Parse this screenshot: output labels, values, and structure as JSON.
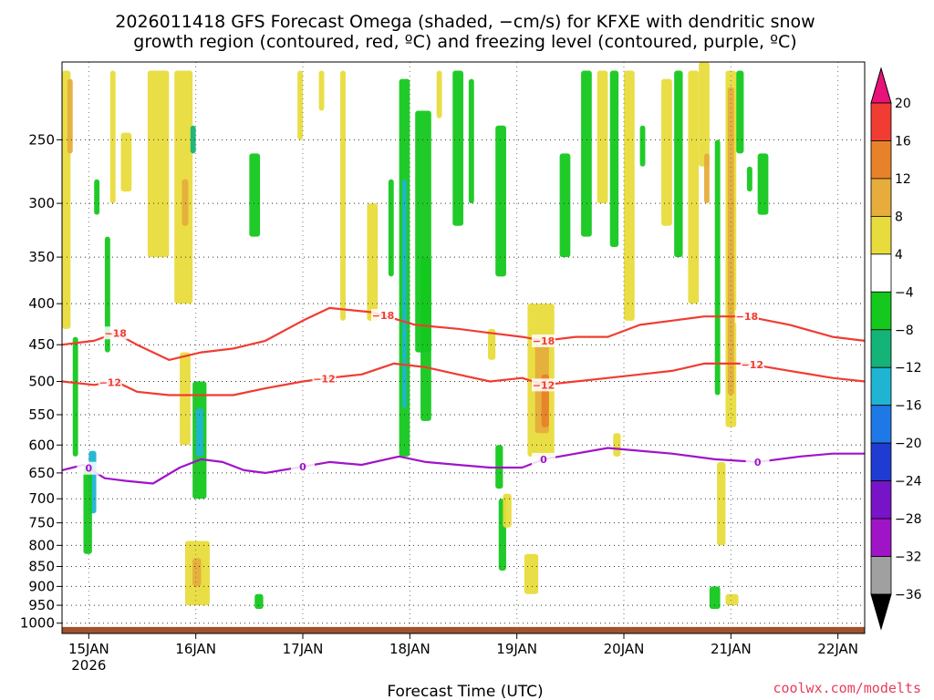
{
  "chart_data": {
    "type": "heatmap",
    "title": [
      "2026011418 GFS Forecast Omega (shaded, −cm/s) for KFXE with dendritic snow",
      "growth region (contoured, red, ºC) and freezing level (contoured, purple, ºC)"
    ],
    "xlabel": "Forecast Time (UTC)",
    "ylabel": "",
    "x_ticks": [
      {
        "t": 14.75,
        "label": "15JAN",
        "sub": "2026"
      },
      {
        "t": 15.75,
        "label": "16JAN",
        "sub": ""
      },
      {
        "t": 16.75,
        "label": "17JAN",
        "sub": ""
      },
      {
        "t": 17.75,
        "label": "18JAN",
        "sub": ""
      },
      {
        "t": 18.75,
        "label": "19JAN",
        "sub": ""
      },
      {
        "t": 19.75,
        "label": "20JAN",
        "sub": ""
      },
      {
        "t": 20.75,
        "label": "21JAN",
        "sub": ""
      },
      {
        "t": 21.75,
        "label": "22JAN",
        "sub": ""
      }
    ],
    "xlim": [
      14.5,
      22.0
    ],
    "y_ticks": [
      250,
      300,
      350,
      400,
      450,
      500,
      550,
      600,
      650,
      700,
      750,
      800,
      850,
      900,
      950,
      1000
    ],
    "ylim_hpa": [
      200,
      1030
    ],
    "colorbar": {
      "labels": [
        "20",
        "16",
        "12",
        "8",
        "4",
        "−4",
        "−8",
        "−12",
        "−16",
        "−20",
        "−24",
        "−28",
        "−32",
        "−36"
      ],
      "colors": [
        "#e8127a",
        "#f03c32",
        "#e8822a",
        "#e6ad3c",
        "#e8dc3c",
        "#ffffff",
        "#14c81e",
        "#14b478",
        "#1eb4d2",
        "#1e78e6",
        "#1e3cd2",
        "#7814c8",
        "#a014c8",
        "#a0a0a0",
        "#000000"
      ]
    },
    "shading_cells": [
      {
        "x": [
          14.5,
          14.58
        ],
        "p": [
          205,
          430
        ],
        "v": "4"
      },
      {
        "x": [
          14.55,
          14.6
        ],
        "p": [
          210,
          260
        ],
        "v": "8"
      },
      {
        "x": [
          14.6,
          14.65
        ],
        "p": [
          440,
          620
        ],
        "v": "-4"
      },
      {
        "x": [
          14.75,
          14.82
        ],
        "p": [
          610,
          730
        ],
        "v": "-12"
      },
      {
        "x": [
          14.7,
          14.78
        ],
        "p": [
          640,
          820
        ],
        "v": "-4"
      },
      {
        "x": [
          14.8,
          14.85
        ],
        "p": [
          280,
          310
        ],
        "v": "-4"
      },
      {
        "x": [
          14.9,
          14.95
        ],
        "p": [
          330,
          460
        ],
        "v": "-4"
      },
      {
        "x": [
          14.95,
          15.0
        ],
        "p": [
          205,
          300
        ],
        "v": "4"
      },
      {
        "x": [
          15.05,
          15.15
        ],
        "p": [
          245,
          290
        ],
        "v": "4"
      },
      {
        "x": [
          15.3,
          15.5
        ],
        "p": [
          205,
          350
        ],
        "v": "4"
      },
      {
        "x": [
          15.55,
          15.72
        ],
        "p": [
          205,
          400
        ],
        "v": "4"
      },
      {
        "x": [
          15.62,
          15.68
        ],
        "p": [
          280,
          320
        ],
        "v": "8"
      },
      {
        "x": [
          15.6,
          15.7
        ],
        "p": [
          460,
          600
        ],
        "v": "4"
      },
      {
        "x": [
          15.7,
          15.75
        ],
        "p": [
          240,
          260
        ],
        "v": "-8"
      },
      {
        "x": [
          15.72,
          15.85
        ],
        "p": [
          500,
          700
        ],
        "v": "-4"
      },
      {
        "x": [
          15.75,
          15.82
        ],
        "p": [
          540,
          620
        ],
        "v": "-12"
      },
      {
        "x": [
          15.65,
          15.88
        ],
        "p": [
          790,
          950
        ],
        "v": "4"
      },
      {
        "x": [
          15.72,
          15.8
        ],
        "p": [
          830,
          900
        ],
        "v": "8"
      },
      {
        "x": [
          16.25,
          16.35
        ],
        "p": [
          260,
          330
        ],
        "v": "-4"
      },
      {
        "x": [
          16.3,
          16.38
        ],
        "p": [
          920,
          960
        ],
        "v": "-4"
      },
      {
        "x": [
          16.7,
          16.75
        ],
        "p": [
          205,
          250
        ],
        "v": "4"
      },
      {
        "x": [
          16.9,
          16.95
        ],
        "p": [
          205,
          230
        ],
        "v": "4"
      },
      {
        "x": [
          17.1,
          17.15
        ],
        "p": [
          205,
          420
        ],
        "v": "4"
      },
      {
        "x": [
          17.35,
          17.45
        ],
        "p": [
          300,
          420
        ],
        "v": "4"
      },
      {
        "x": [
          17.55,
          17.6
        ],
        "p": [
          280,
          370
        ],
        "v": "-4"
      },
      {
        "x": [
          17.65,
          17.75
        ],
        "p": [
          210,
          620
        ],
        "v": "-4"
      },
      {
        "x": [
          17.68,
          17.72
        ],
        "p": [
          280,
          540
        ],
        "v": "-12"
      },
      {
        "x": [
          17.8,
          17.95
        ],
        "p": [
          230,
          460
        ],
        "v": "-4"
      },
      {
        "x": [
          17.85,
          17.95
        ],
        "p": [
          350,
          560
        ],
        "v": "-4"
      },
      {
        "x": [
          18.0,
          18.05
        ],
        "p": [
          205,
          235
        ],
        "v": "4"
      },
      {
        "x": [
          18.15,
          18.25
        ],
        "p": [
          205,
          320
        ],
        "v": "-4"
      },
      {
        "x": [
          18.3,
          18.35
        ],
        "p": [
          210,
          300
        ],
        "v": "-4"
      },
      {
        "x": [
          18.55,
          18.65
        ],
        "p": [
          240,
          370
        ],
        "v": "-4"
      },
      {
        "x": [
          18.48,
          18.55
        ],
        "p": [
          430,
          470
        ],
        "v": "4"
      },
      {
        "x": [
          18.55,
          18.62
        ],
        "p": [
          600,
          680
        ],
        "v": "-4"
      },
      {
        "x": [
          18.58,
          18.65
        ],
        "p": [
          700,
          860
        ],
        "v": "-4"
      },
      {
        "x": [
          18.62,
          18.7
        ],
        "p": [
          690,
          760
        ],
        "v": "4"
      },
      {
        "x": [
          18.85,
          19.1
        ],
        "p": [
          400,
          620
        ],
        "v": "4"
      },
      {
        "x": [
          18.92,
          19.05
        ],
        "p": [
          450,
          580
        ],
        "v": "8"
      },
      {
        "x": [
          18.98,
          19.05
        ],
        "p": [
          490,
          570
        ],
        "v": "12"
      },
      {
        "x": [
          18.82,
          18.95
        ],
        "p": [
          820,
          920
        ],
        "v": "4"
      },
      {
        "x": [
          19.15,
          19.25
        ],
        "p": [
          260,
          350
        ],
        "v": "-4"
      },
      {
        "x": [
          19.35,
          19.45
        ],
        "p": [
          205,
          330
        ],
        "v": "-4"
      },
      {
        "x": [
          19.5,
          19.6
        ],
        "p": [
          205,
          300
        ],
        "v": "4"
      },
      {
        "x": [
          19.62,
          19.7
        ],
        "p": [
          205,
          340
        ],
        "v": "-4"
      },
      {
        "x": [
          19.75,
          19.85
        ],
        "p": [
          205,
          420
        ],
        "v": "4"
      },
      {
        "x": [
          19.9,
          19.95
        ],
        "p": [
          240,
          270
        ],
        "v": "-4"
      },
      {
        "x": [
          19.65,
          19.72
        ],
        "p": [
          580,
          620
        ],
        "v": "4"
      },
      {
        "x": [
          20.1,
          20.2
        ],
        "p": [
          210,
          320
        ],
        "v": "4"
      },
      {
        "x": [
          20.22,
          20.3
        ],
        "p": [
          205,
          350
        ],
        "v": "-4"
      },
      {
        "x": [
          20.35,
          20.45
        ],
        "p": [
          205,
          400
        ],
        "v": "4"
      },
      {
        "x": [
          20.45,
          20.55
        ],
        "p": [
          200,
          270
        ],
        "v": "4"
      },
      {
        "x": [
          20.5,
          20.55
        ],
        "p": [
          260,
          300
        ],
        "v": "8"
      },
      {
        "x": [
          20.6,
          20.65
        ],
        "p": [
          250,
          520
        ],
        "v": "-4"
      },
      {
        "x": [
          20.7,
          20.8
        ],
        "p": [
          205,
          570
        ],
        "v": "4"
      },
      {
        "x": [
          20.72,
          20.78
        ],
        "p": [
          215,
          520
        ],
        "v": "8"
      },
      {
        "x": [
          20.62,
          20.7
        ],
        "p": [
          630,
          800
        ],
        "v": "4"
      },
      {
        "x": [
          20.8,
          20.87
        ],
        "p": [
          205,
          260
        ],
        "v": "-4"
      },
      {
        "x": [
          20.9,
          20.95
        ],
        "p": [
          270,
          290
        ],
        "v": "-4"
      },
      {
        "x": [
          21.0,
          21.1
        ],
        "p": [
          260,
          310
        ],
        "v": "-4"
      },
      {
        "x": [
          20.55,
          20.65
        ],
        "p": [
          900,
          960
        ],
        "v": "-4"
      },
      {
        "x": [
          20.7,
          20.82
        ],
        "p": [
          920,
          950
        ],
        "v": "4"
      }
    ],
    "series": [
      {
        "name": "-18 °C isotherm",
        "color": "#f03c32",
        "label": "-18",
        "label_at": [
          15.0,
          17.5,
          19.0,
          20.9
        ],
        "points": [
          [
            14.5,
            450
          ],
          [
            14.8,
            445
          ],
          [
            15.0,
            435
          ],
          [
            15.2,
            450
          ],
          [
            15.5,
            470
          ],
          [
            15.8,
            460
          ],
          [
            16.1,
            455
          ],
          [
            16.4,
            445
          ],
          [
            16.75,
            420
          ],
          [
            17.0,
            405
          ],
          [
            17.4,
            410
          ],
          [
            17.8,
            425
          ],
          [
            18.2,
            430
          ],
          [
            18.5,
            435
          ],
          [
            18.8,
            440
          ],
          [
            19.0,
            445
          ],
          [
            19.3,
            440
          ],
          [
            19.6,
            440
          ],
          [
            19.9,
            425
          ],
          [
            20.2,
            420
          ],
          [
            20.5,
            415
          ],
          [
            20.9,
            415
          ],
          [
            21.3,
            425
          ],
          [
            21.7,
            440
          ],
          [
            22.0,
            445
          ]
        ]
      },
      {
        "name": "-12 °C isotherm",
        "color": "#f03c32",
        "label": "-12",
        "label_at": [
          14.95,
          16.95,
          19.0,
          20.95
        ],
        "points": [
          [
            14.5,
            500
          ],
          [
            14.8,
            505
          ],
          [
            15.0,
            500
          ],
          [
            15.2,
            515
          ],
          [
            15.5,
            520
          ],
          [
            15.8,
            520
          ],
          [
            16.1,
            520
          ],
          [
            16.4,
            510
          ],
          [
            16.75,
            500
          ],
          [
            17.0,
            495
          ],
          [
            17.3,
            490
          ],
          [
            17.6,
            475
          ],
          [
            17.9,
            480
          ],
          [
            18.2,
            490
          ],
          [
            18.5,
            500
          ],
          [
            18.8,
            495
          ],
          [
            19.0,
            505
          ],
          [
            19.3,
            500
          ],
          [
            19.6,
            495
          ],
          [
            19.9,
            490
          ],
          [
            20.2,
            485
          ],
          [
            20.5,
            475
          ],
          [
            20.9,
            475
          ],
          [
            21.3,
            485
          ],
          [
            21.7,
            495
          ],
          [
            22.0,
            500
          ]
        ]
      },
      {
        "name": "0 °C freezing level",
        "color": "#a014c8",
        "label": "0",
        "label_at": [
          14.75,
          16.75,
          19.0,
          21.0
        ],
        "points": [
          [
            14.5,
            645
          ],
          [
            14.7,
            635
          ],
          [
            14.9,
            660
          ],
          [
            15.1,
            665
          ],
          [
            15.35,
            670
          ],
          [
            15.6,
            640
          ],
          [
            15.8,
            625
          ],
          [
            16.0,
            630
          ],
          [
            16.2,
            645
          ],
          [
            16.4,
            650
          ],
          [
            16.7,
            640
          ],
          [
            17.0,
            630
          ],
          [
            17.3,
            635
          ],
          [
            17.65,
            620
          ],
          [
            17.9,
            630
          ],
          [
            18.2,
            635
          ],
          [
            18.5,
            640
          ],
          [
            18.8,
            640
          ],
          [
            19.0,
            625
          ],
          [
            19.3,
            615
          ],
          [
            19.6,
            605
          ],
          [
            19.9,
            610
          ],
          [
            20.2,
            615
          ],
          [
            20.6,
            625
          ],
          [
            21.0,
            630
          ],
          [
            21.4,
            620
          ],
          [
            21.7,
            615
          ],
          [
            22.0,
            615
          ]
        ]
      }
    ],
    "terrain": {
      "color": "#a0522d",
      "top_hpa": 1011
    }
  },
  "credit": "coolwx.com/modelts"
}
